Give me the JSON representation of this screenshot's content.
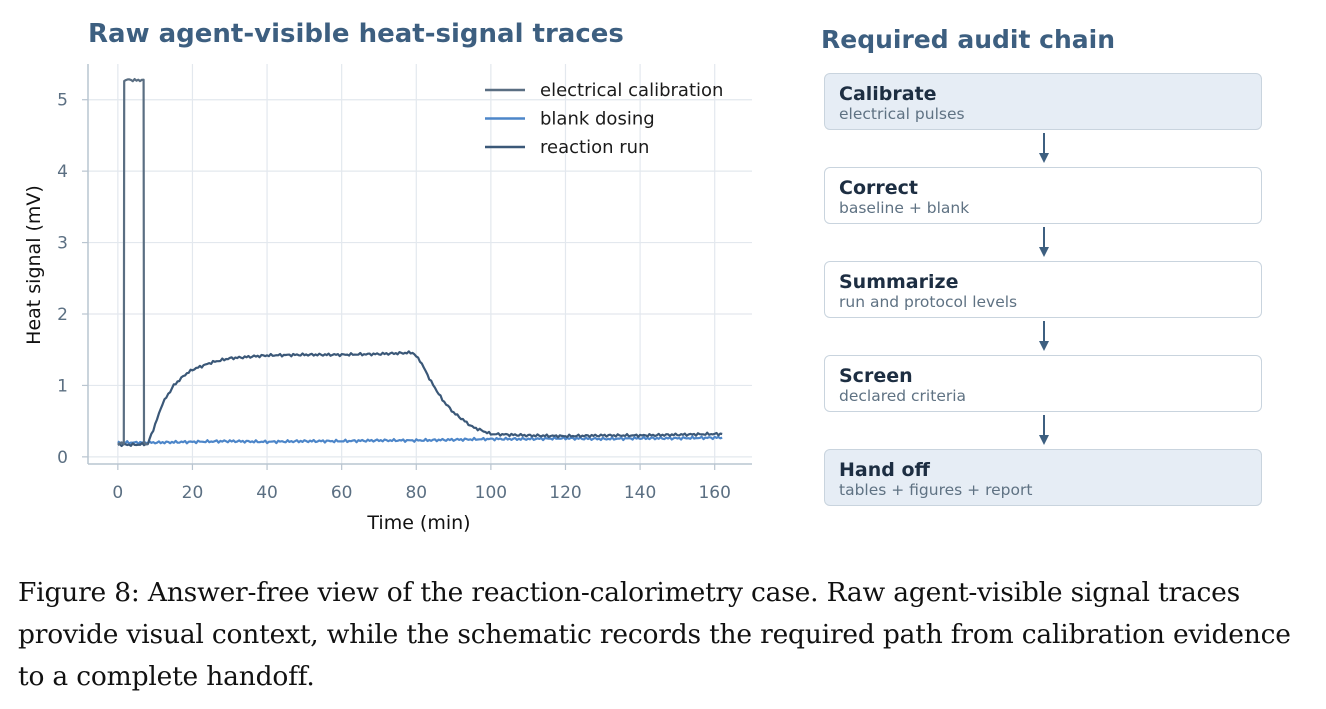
{
  "chart": {
    "title": "Raw agent-visible heat-signal traces",
    "xlabel": "Time (min)",
    "ylabel": "Heat signal (mV)"
  },
  "chart_data": {
    "type": "line",
    "title": "Raw agent-visible heat-signal traces",
    "xlabel": "Time (min)",
    "ylabel": "Heat signal (mV)",
    "xlim": [
      -8,
      170
    ],
    "ylim": [
      -0.1,
      5.5
    ],
    "xticks": [
      0,
      20,
      40,
      60,
      80,
      100,
      120,
      140,
      160
    ],
    "yticks": [
      0,
      1,
      2,
      3,
      4,
      5
    ],
    "grid": true,
    "legend_position": "top-right",
    "series": [
      {
        "name": "electrical calibration",
        "color": "#5a6e82",
        "x": [
          0,
          1,
          1.6,
          1.7,
          3,
          5,
          6.9,
          7.0,
          8
        ],
        "y": [
          0.18,
          0.19,
          0.18,
          5.27,
          5.28,
          5.27,
          5.28,
          0.19,
          0.18
        ]
      },
      {
        "name": "blank dosing",
        "color": "#4d86c9",
        "x": [
          0,
          10,
          20,
          30,
          40,
          50,
          60,
          70,
          80,
          90,
          100,
          110,
          120,
          130,
          140,
          150,
          162
        ],
        "y": [
          0.2,
          0.2,
          0.21,
          0.22,
          0.21,
          0.22,
          0.22,
          0.23,
          0.23,
          0.24,
          0.25,
          0.25,
          0.26,
          0.25,
          0.26,
          0.26,
          0.27
        ]
      },
      {
        "name": "reaction run",
        "color": "#3b5878",
        "x": [
          0,
          5,
          8,
          10,
          12,
          15,
          18,
          20,
          25,
          30,
          40,
          50,
          60,
          70,
          75,
          79,
          81,
          84,
          87,
          90,
          95,
          100,
          110,
          120,
          130,
          140,
          150,
          160,
          162
        ],
        "y": [
          0.17,
          0.17,
          0.18,
          0.45,
          0.75,
          1.0,
          1.15,
          1.22,
          1.32,
          1.38,
          1.42,
          1.43,
          1.43,
          1.44,
          1.45,
          1.46,
          1.35,
          1.05,
          0.8,
          0.62,
          0.42,
          0.32,
          0.3,
          0.29,
          0.3,
          0.3,
          0.31,
          0.32,
          0.32
        ]
      }
    ]
  },
  "audit": {
    "title": "Required audit chain",
    "steps": [
      {
        "title": "Calibrate",
        "sub": "electrical pulses"
      },
      {
        "title": "Correct",
        "sub": "baseline + blank"
      },
      {
        "title": "Summarize",
        "sub": "run and protocol levels"
      },
      {
        "title": "Screen",
        "sub": "declared criteria"
      },
      {
        "title": "Hand off",
        "sub": "tables + figures + report"
      }
    ]
  },
  "caption": "Figure 8: Answer-free view of the reaction-calorimetry case. Raw agent-visible signal traces provide visual context, while the schematic records the required path from calibration evidence to a complete handoff."
}
